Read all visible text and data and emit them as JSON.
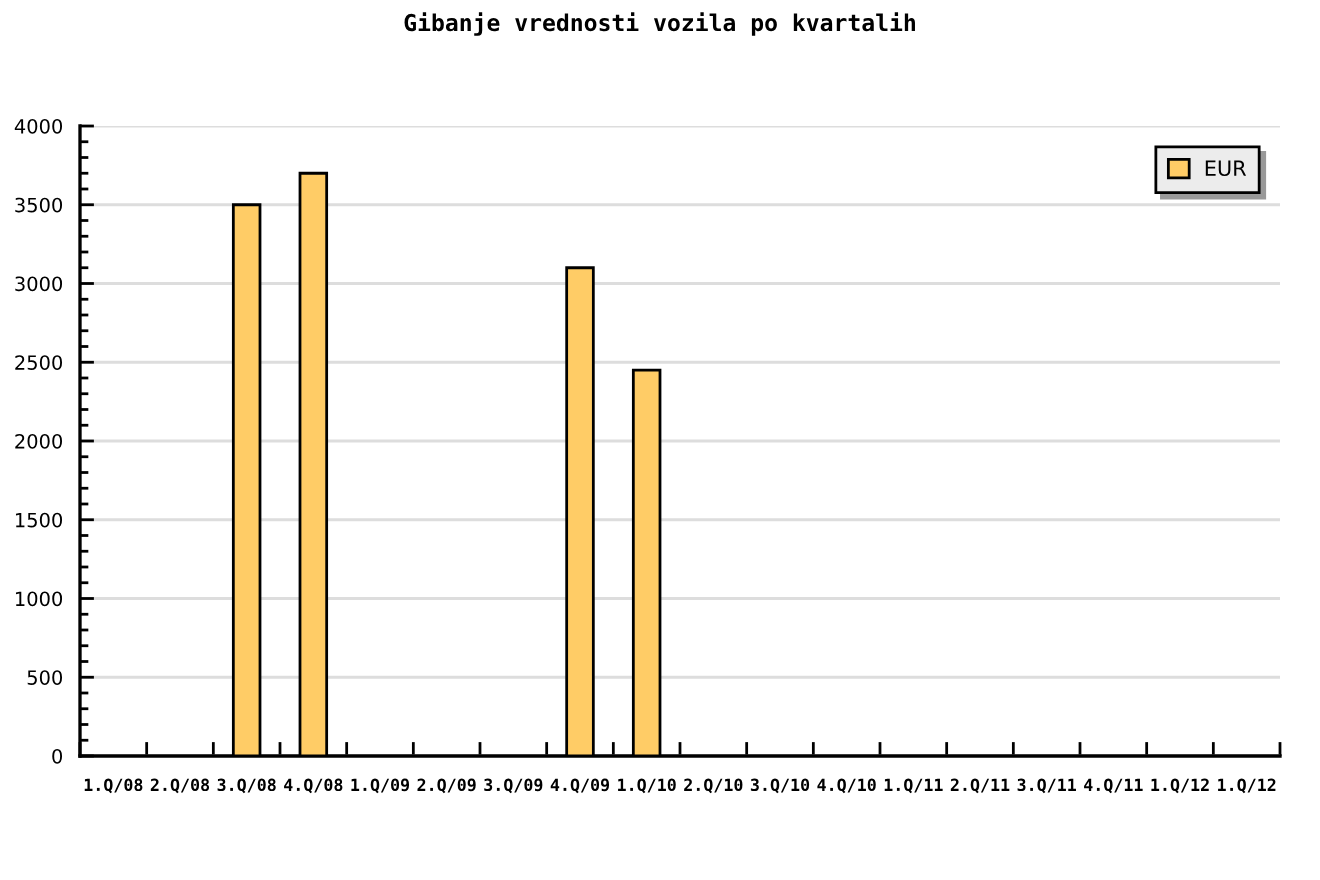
{
  "chart_data": {
    "type": "bar",
    "title": "Gibanje vrednosti vozila po kvartalih",
    "categories": [
      "1.Q/08",
      "2.Q/08",
      "3.Q/08",
      "4.Q/08",
      "1.Q/09",
      "2.Q/09",
      "3.Q/09",
      "4.Q/09",
      "1.Q/10",
      "2.Q/10",
      "3.Q/10",
      "4.Q/10",
      "1.Q/11",
      "2.Q/11",
      "3.Q/11",
      "4.Q/11",
      "1.Q/12",
      "1.Q/12"
    ],
    "series": [
      {
        "name": "EUR",
        "color": "#ffcc66",
        "values": [
          null,
          null,
          3500,
          3700,
          null,
          null,
          null,
          3100,
          2450,
          null,
          null,
          null,
          null,
          null,
          null,
          null,
          null,
          null
        ]
      }
    ],
    "ylim": [
      0,
      4000
    ],
    "yticks": [
      0,
      {
        "value": 100,
        "label": null
      },
      {
        "value": 200,
        "label": null
      },
      {
        "value": 300,
        "label": null
      },
      {
        "value": 400,
        "label": null
      },
      500,
      {
        "value": 600,
        "label": null
      },
      {
        "value": 700,
        "label": null
      },
      {
        "value": 800,
        "label": null
      },
      {
        "value": 900,
        "label": null
      },
      1000,
      {
        "value": 1100,
        "label": null
      },
      {
        "value": 1200,
        "label": null
      },
      {
        "value": 1300,
        "label": null
      },
      {
        "value": 1400,
        "label": null
      },
      1500,
      {
        "value": 1600,
        "label": null
      },
      {
        "value": 1700,
        "label": null
      },
      {
        "value": 1800,
        "label": null
      },
      {
        "value": 1900,
        "label": null
      },
      2000,
      {
        "value": 2100,
        "label": null
      },
      {
        "value": 2200,
        "label": null
      },
      {
        "value": 2300,
        "label": null
      },
      {
        "value": 2400,
        "label": null
      },
      2500,
      {
        "value": 2600,
        "label": null
      },
      {
        "value": 2700,
        "label": null
      },
      {
        "value": 2800,
        "label": null
      },
      {
        "value": 2900,
        "label": null
      },
      3000,
      {
        "value": 3100,
        "label": null
      },
      {
        "value": 3200,
        "label": null
      },
      {
        "value": 3300,
        "label": null
      },
      {
        "value": 3400,
        "label": null
      },
      3500,
      {
        "value": 3600,
        "label": null
      },
      {
        "value": 3700,
        "label": null
      },
      {
        "value": 3800,
        "label": null
      },
      {
        "value": 3900,
        "label": null
      },
      4000
    ],
    "grid": "y",
    "legend": "top right"
  }
}
